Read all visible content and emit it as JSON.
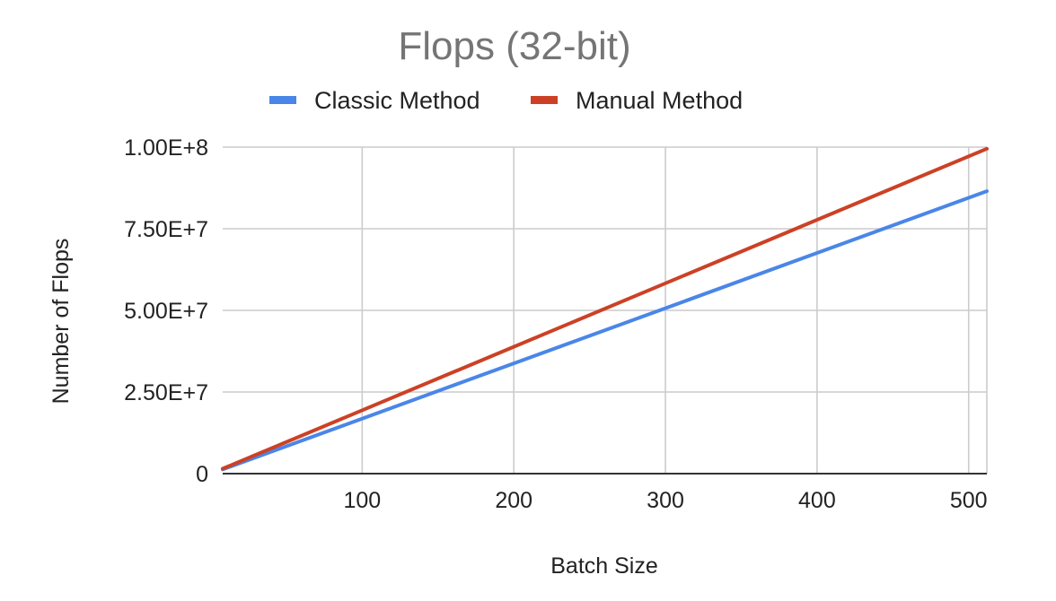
{
  "chart_data": {
    "type": "line",
    "title": "Flops (32-bit)",
    "xlabel": "Batch Size",
    "ylabel": "Number of Flops",
    "xlim": [
      8,
      512
    ],
    "ylim": [
      0,
      100000000
    ],
    "x_ticks": [
      100,
      200,
      300,
      400,
      500
    ],
    "x_tick_labels": [
      "100",
      "200",
      "300",
      "400",
      "500"
    ],
    "y_ticks": [
      0,
      25000000,
      50000000,
      75000000,
      100000000
    ],
    "y_tick_labels": [
      "0",
      "2.50E+7",
      "5.00E+7",
      "7.50E+7",
      "1.00E+8"
    ],
    "grid": true,
    "legend_position": "top",
    "x": [
      8,
      512
    ],
    "series": [
      {
        "name": "Classic Method",
        "color": "#4a86e8",
        "values": [
          1300000,
          86500000
        ]
      },
      {
        "name": "Manual Method",
        "color": "#cc4125",
        "values": [
          1500000,
          99500000
        ]
      }
    ]
  }
}
